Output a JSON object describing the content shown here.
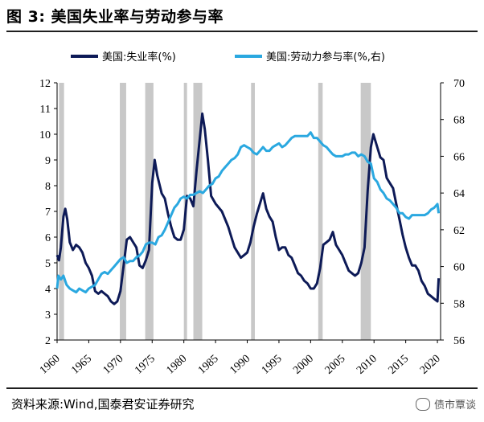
{
  "title": "图 3:  美国失业率与劳动参与率",
  "source_note": "资料来源:Wind,国泰君安证券研究",
  "watermark": "债市覃谈",
  "colors": {
    "unemployment": "#0d1a57",
    "participation": "#2aa8e0",
    "recession": "#c8c8c8"
  },
  "chart_data": {
    "type": "line",
    "legend": [
      "美国:失业率(%)",
      "美国:劳动力参与率(%,右)"
    ],
    "x_ticks": [
      1960,
      1965,
      1970,
      1975,
      1980,
      1985,
      1990,
      1995,
      2000,
      2005,
      2010,
      2015,
      2020
    ],
    "y_left": {
      "min": 2,
      "max": 12,
      "ticks": [
        2,
        3,
        4,
        5,
        6,
        7,
        8,
        9,
        10,
        11,
        12
      ]
    },
    "y_right": {
      "min": 56,
      "max": 70,
      "ticks": [
        56,
        58,
        60,
        62,
        64,
        66,
        68,
        70
      ]
    },
    "recessions": [
      [
        1960.3,
        1961.1
      ],
      [
        1969.9,
        1970.9
      ],
      [
        1973.9,
        1975.2
      ],
      [
        1980.0,
        1980.5
      ],
      [
        1981.5,
        1982.9
      ],
      [
        1990.6,
        1991.2
      ],
      [
        2001.2,
        2001.9
      ],
      [
        2007.9,
        2009.5
      ]
    ],
    "series": [
      {
        "name": "美国:失业率(%)",
        "axis": "left",
        "points": [
          [
            1960.0,
            5.3
          ],
          [
            1960.3,
            5.1
          ],
          [
            1960.6,
            5.6
          ],
          [
            1961.0,
            6.8
          ],
          [
            1961.3,
            7.1
          ],
          [
            1961.6,
            6.7
          ],
          [
            1962.0,
            5.8
          ],
          [
            1962.5,
            5.5
          ],
          [
            1963.0,
            5.7
          ],
          [
            1963.5,
            5.6
          ],
          [
            1964.0,
            5.4
          ],
          [
            1964.5,
            5.0
          ],
          [
            1965.0,
            4.8
          ],
          [
            1965.5,
            4.5
          ],
          [
            1966.0,
            3.9
          ],
          [
            1966.5,
            3.8
          ],
          [
            1967.0,
            3.9
          ],
          [
            1967.5,
            3.8
          ],
          [
            1968.0,
            3.7
          ],
          [
            1968.5,
            3.5
          ],
          [
            1969.0,
            3.4
          ],
          [
            1969.5,
            3.5
          ],
          [
            1970.0,
            3.9
          ],
          [
            1970.5,
            4.9
          ],
          [
            1971.0,
            5.9
          ],
          [
            1971.5,
            6.0
          ],
          [
            1972.0,
            5.8
          ],
          [
            1972.5,
            5.6
          ],
          [
            1973.0,
            4.9
          ],
          [
            1973.5,
            4.8
          ],
          [
            1974.0,
            5.1
          ],
          [
            1974.5,
            5.5
          ],
          [
            1975.0,
            8.1
          ],
          [
            1975.4,
            9.0
          ],
          [
            1975.8,
            8.4
          ],
          [
            1976.5,
            7.7
          ],
          [
            1977.0,
            7.5
          ],
          [
            1977.5,
            6.9
          ],
          [
            1978.0,
            6.4
          ],
          [
            1978.5,
            6.0
          ],
          [
            1979.0,
            5.9
          ],
          [
            1979.5,
            5.9
          ],
          [
            1980.0,
            6.3
          ],
          [
            1980.5,
            7.6
          ],
          [
            1981.0,
            7.5
          ],
          [
            1981.5,
            7.2
          ],
          [
            1982.0,
            8.6
          ],
          [
            1982.5,
            9.8
          ],
          [
            1982.9,
            10.8
          ],
          [
            1983.3,
            10.2
          ],
          [
            1983.8,
            9.0
          ],
          [
            1984.3,
            7.6
          ],
          [
            1985.0,
            7.3
          ],
          [
            1986.0,
            7.0
          ],
          [
            1987.0,
            6.4
          ],
          [
            1987.5,
            6.0
          ],
          [
            1988.0,
            5.6
          ],
          [
            1988.5,
            5.4
          ],
          [
            1989.0,
            5.2
          ],
          [
            1989.5,
            5.3
          ],
          [
            1990.0,
            5.4
          ],
          [
            1990.5,
            5.8
          ],
          [
            1991.0,
            6.4
          ],
          [
            1991.5,
            6.9
          ],
          [
            1992.0,
            7.3
          ],
          [
            1992.5,
            7.7
          ],
          [
            1993.0,
            7.1
          ],
          [
            1993.5,
            6.8
          ],
          [
            1994.0,
            6.6
          ],
          [
            1994.5,
            6.0
          ],
          [
            1995.0,
            5.5
          ],
          [
            1995.5,
            5.6
          ],
          [
            1996.0,
            5.6
          ],
          [
            1996.5,
            5.3
          ],
          [
            1997.0,
            5.2
          ],
          [
            1997.5,
            4.9
          ],
          [
            1998.0,
            4.6
          ],
          [
            1998.5,
            4.5
          ],
          [
            1999.0,
            4.3
          ],
          [
            1999.5,
            4.2
          ],
          [
            2000.0,
            4.0
          ],
          [
            2000.5,
            4.0
          ],
          [
            2001.0,
            4.2
          ],
          [
            2001.5,
            4.8
          ],
          [
            2002.0,
            5.7
          ],
          [
            2002.5,
            5.8
          ],
          [
            2003.0,
            5.9
          ],
          [
            2003.5,
            6.2
          ],
          [
            2004.0,
            5.7
          ],
          [
            2004.5,
            5.5
          ],
          [
            2005.0,
            5.3
          ],
          [
            2005.5,
            5.0
          ],
          [
            2006.0,
            4.7
          ],
          [
            2006.5,
            4.6
          ],
          [
            2007.0,
            4.5
          ],
          [
            2007.5,
            4.6
          ],
          [
            2008.0,
            5.0
          ],
          [
            2008.5,
            5.6
          ],
          [
            2009.0,
            7.8
          ],
          [
            2009.5,
            9.5
          ],
          [
            2009.9,
            10.0
          ],
          [
            2010.5,
            9.5
          ],
          [
            2011.0,
            9.1
          ],
          [
            2011.5,
            9.0
          ],
          [
            2012.0,
            8.3
          ],
          [
            2012.5,
            8.1
          ],
          [
            2013.0,
            7.9
          ],
          [
            2013.5,
            7.3
          ],
          [
            2014.0,
            6.7
          ],
          [
            2014.5,
            6.1
          ],
          [
            2015.0,
            5.6
          ],
          [
            2015.5,
            5.2
          ],
          [
            2016.0,
            4.9
          ],
          [
            2016.5,
            4.9
          ],
          [
            2017.0,
            4.7
          ],
          [
            2017.5,
            4.3
          ],
          [
            2018.0,
            4.1
          ],
          [
            2018.5,
            3.8
          ],
          [
            2019.0,
            3.7
          ],
          [
            2019.5,
            3.6
          ],
          [
            2020.0,
            3.5
          ],
          [
            2020.2,
            4.4
          ]
        ]
      },
      {
        "name": "美国:劳动力参与率(%,右)",
        "axis": "right",
        "points": [
          [
            1960.0,
            58.8
          ],
          [
            1960.2,
            59.5
          ],
          [
            1960.6,
            59.3
          ],
          [
            1961.0,
            59.5
          ],
          [
            1961.5,
            59.0
          ],
          [
            1962.0,
            58.8
          ],
          [
            1962.5,
            58.7
          ],
          [
            1963.0,
            58.6
          ],
          [
            1963.5,
            58.8
          ],
          [
            1964.0,
            58.7
          ],
          [
            1964.5,
            58.6
          ],
          [
            1965.0,
            58.8
          ],
          [
            1965.5,
            58.9
          ],
          [
            1966.0,
            59.0
          ],
          [
            1966.5,
            59.3
          ],
          [
            1967.0,
            59.6
          ],
          [
            1967.5,
            59.7
          ],
          [
            1968.0,
            59.6
          ],
          [
            1968.5,
            59.8
          ],
          [
            1969.0,
            60.0
          ],
          [
            1969.5,
            60.2
          ],
          [
            1970.0,
            60.4
          ],
          [
            1970.5,
            60.5
          ],
          [
            1971.0,
            60.2
          ],
          [
            1971.5,
            60.3
          ],
          [
            1972.0,
            60.3
          ],
          [
            1972.5,
            60.5
          ],
          [
            1973.0,
            60.6
          ],
          [
            1973.5,
            60.8
          ],
          [
            1974.0,
            61.2
          ],
          [
            1974.5,
            61.3
          ],
          [
            1975.0,
            61.3
          ],
          [
            1975.5,
            61.2
          ],
          [
            1976.0,
            61.6
          ],
          [
            1976.5,
            61.7
          ],
          [
            1977.0,
            62.0
          ],
          [
            1977.5,
            62.4
          ],
          [
            1978.0,
            62.8
          ],
          [
            1978.5,
            63.2
          ],
          [
            1979.0,
            63.4
          ],
          [
            1979.5,
            63.7
          ],
          [
            1980.0,
            63.8
          ],
          [
            1980.5,
            63.7
          ],
          [
            1981.0,
            63.9
          ],
          [
            1981.5,
            63.9
          ],
          [
            1982.0,
            64.0
          ],
          [
            1982.5,
            64.1
          ],
          [
            1983.0,
            64.0
          ],
          [
            1983.5,
            64.2
          ],
          [
            1984.0,
            64.4
          ],
          [
            1984.5,
            64.5
          ],
          [
            1985.0,
            64.8
          ],
          [
            1985.5,
            64.9
          ],
          [
            1986.0,
            65.2
          ],
          [
            1986.5,
            65.4
          ],
          [
            1987.0,
            65.6
          ],
          [
            1987.5,
            65.8
          ],
          [
            1988.0,
            65.9
          ],
          [
            1988.5,
            66.1
          ],
          [
            1989.0,
            66.5
          ],
          [
            1989.5,
            66.6
          ],
          [
            1990.0,
            66.5
          ],
          [
            1990.5,
            66.4
          ],
          [
            1991.0,
            66.2
          ],
          [
            1991.5,
            66.1
          ],
          [
            1992.0,
            66.3
          ],
          [
            1992.5,
            66.5
          ],
          [
            1993.0,
            66.3
          ],
          [
            1993.5,
            66.3
          ],
          [
            1994.0,
            66.5
          ],
          [
            1994.5,
            66.6
          ],
          [
            1995.0,
            66.7
          ],
          [
            1995.5,
            66.5
          ],
          [
            1996.0,
            66.6
          ],
          [
            1996.5,
            66.8
          ],
          [
            1997.0,
            67.0
          ],
          [
            1997.5,
            67.1
          ],
          [
            1998.0,
            67.1
          ],
          [
            1998.5,
            67.1
          ],
          [
            1999.0,
            67.1
          ],
          [
            1999.5,
            67.1
          ],
          [
            2000.0,
            67.3
          ],
          [
            2000.5,
            67.0
          ],
          [
            2001.0,
            67.0
          ],
          [
            2001.5,
            66.8
          ],
          [
            2002.0,
            66.6
          ],
          [
            2002.5,
            66.5
          ],
          [
            2003.0,
            66.3
          ],
          [
            2003.5,
            66.1
          ],
          [
            2004.0,
            66.0
          ],
          [
            2004.5,
            66.0
          ],
          [
            2005.0,
            66.0
          ],
          [
            2005.5,
            66.1
          ],
          [
            2006.0,
            66.1
          ],
          [
            2006.5,
            66.2
          ],
          [
            2007.0,
            66.2
          ],
          [
            2007.5,
            66.0
          ],
          [
            2008.0,
            66.1
          ],
          [
            2008.5,
            66.0
          ],
          [
            2009.0,
            65.7
          ],
          [
            2009.5,
            65.6
          ],
          [
            2010.0,
            64.8
          ],
          [
            2010.5,
            64.6
          ],
          [
            2011.0,
            64.2
          ],
          [
            2011.5,
            64.0
          ],
          [
            2012.0,
            63.7
          ],
          [
            2012.5,
            63.6
          ],
          [
            2013.0,
            63.4
          ],
          [
            2013.5,
            63.2
          ],
          [
            2014.0,
            62.9
          ],
          [
            2014.5,
            62.9
          ],
          [
            2015.0,
            62.7
          ],
          [
            2015.5,
            62.6
          ],
          [
            2016.0,
            62.8
          ],
          [
            2016.5,
            62.8
          ],
          [
            2017.0,
            62.8
          ],
          [
            2017.5,
            62.8
          ],
          [
            2018.0,
            62.8
          ],
          [
            2018.5,
            62.9
          ],
          [
            2019.0,
            63.1
          ],
          [
            2019.5,
            63.2
          ],
          [
            2020.0,
            63.4
          ],
          [
            2020.2,
            62.9
          ]
        ]
      }
    ]
  }
}
